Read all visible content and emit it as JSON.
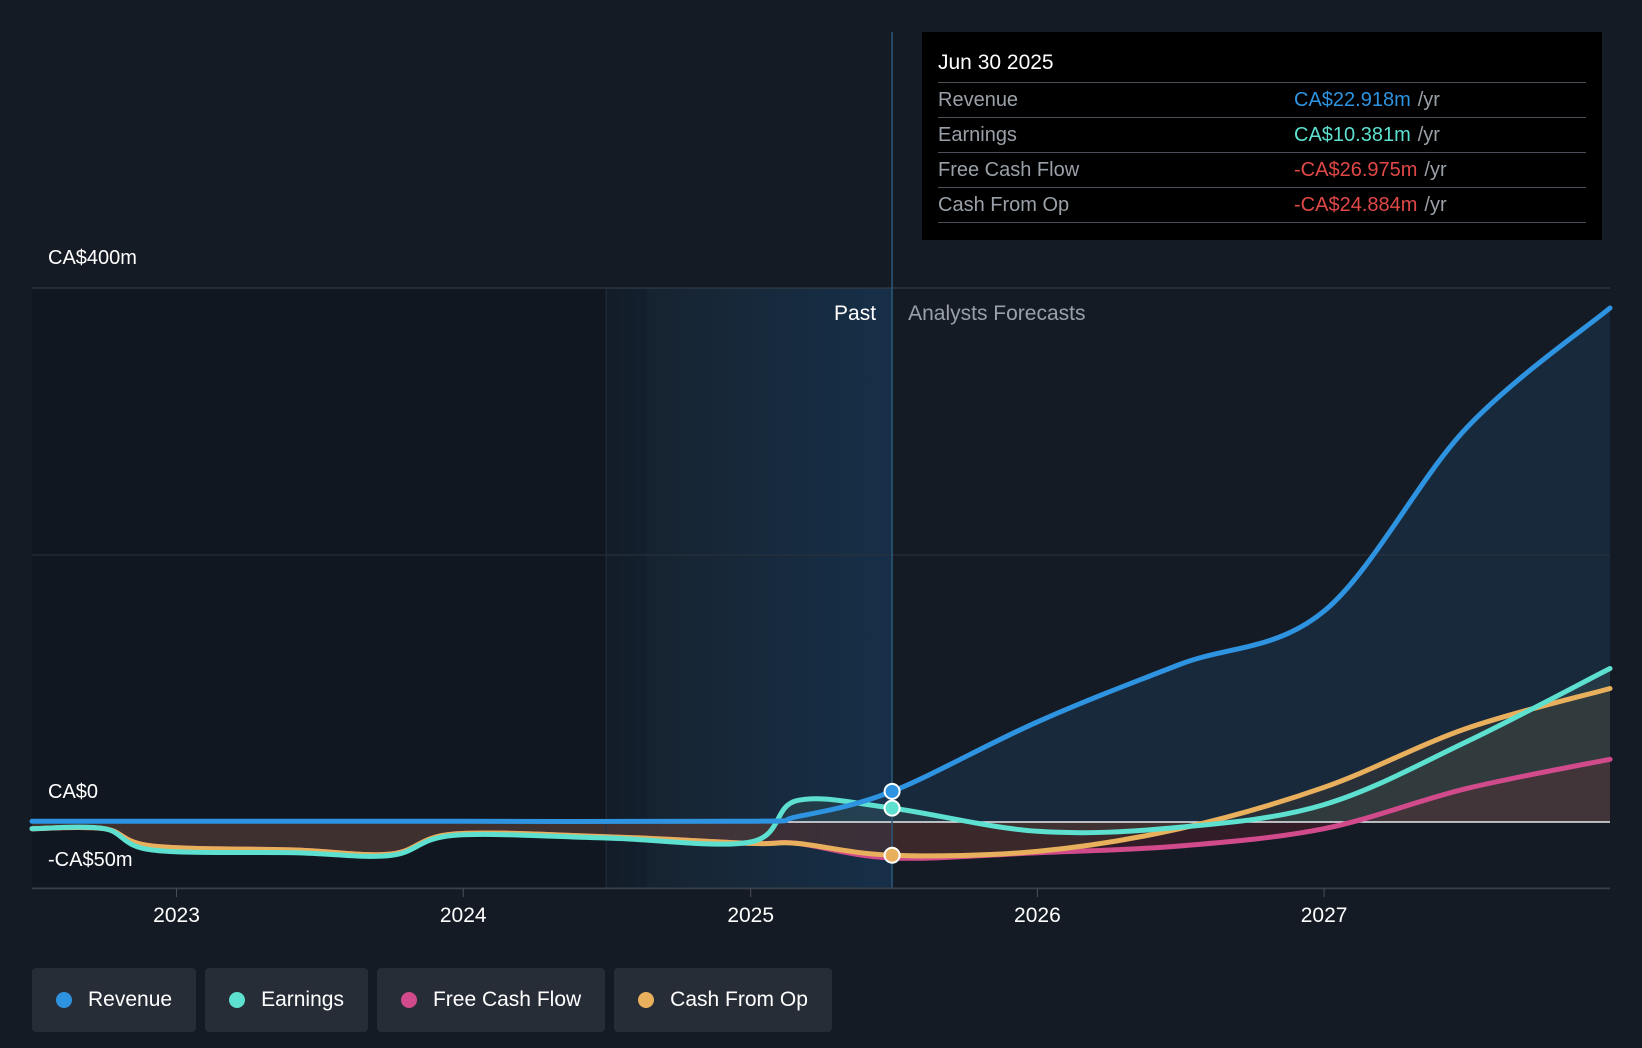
{
  "tooltip": {
    "date": "Jun 30 2025",
    "rows": [
      {
        "label": "Revenue",
        "value": "CA$22.918m",
        "unit": "/yr",
        "color": "#2e93e0"
      },
      {
        "label": "Earnings",
        "value": "CA$10.381m",
        "unit": "/yr",
        "color": "#5de0cf"
      },
      {
        "label": "Free Cash Flow",
        "value": "-CA$26.975m",
        "unit": "/yr",
        "color": "#e04848"
      },
      {
        "label": "Cash From Op",
        "value": "-CA$24.884m",
        "unit": "/yr",
        "color": "#e04848"
      }
    ]
  },
  "legend": [
    {
      "label": "Revenue",
      "color": "#2e93e0"
    },
    {
      "label": "Earnings",
      "color": "#5de0cf"
    },
    {
      "label": "Free Cash Flow",
      "color": "#d14b8c"
    },
    {
      "label": "Cash From Op",
      "color": "#e8b05c"
    }
  ],
  "chart_data": {
    "type": "line",
    "y_tick_labels": [
      "CA$400m",
      "CA$0",
      "-CA$50m"
    ],
    "y_ticks": [
      400,
      0,
      -50
    ],
    "ylim": [
      -50,
      400
    ],
    "xlim": [
      "2022-07-01",
      "2027-12-31"
    ],
    "x_ticks": [
      {
        "label": "2023",
        "date": "2023-01-01"
      },
      {
        "label": "2024",
        "date": "2024-01-01"
      },
      {
        "label": "2025",
        "date": "2025-01-01"
      },
      {
        "label": "2026",
        "date": "2026-01-01"
      },
      {
        "label": "2027",
        "date": "2027-01-01"
      }
    ],
    "past_label": "Past",
    "forecast_label": "Analysts Forecasts",
    "past_start": "2024-07-01",
    "divider_date": "2025-06-30",
    "grid": true,
    "series": [
      {
        "name": "Revenue",
        "color": "#2e93e0",
        "points": [
          [
            "2022-07-01",
            0.5
          ],
          [
            "2023-01-01",
            0.5
          ],
          [
            "2024-01-01",
            0.5
          ],
          [
            "2025-01-01",
            0.5
          ],
          [
            "2025-03-01",
            4
          ],
          [
            "2025-06-30",
            22.918
          ],
          [
            "2026-01-01",
            75
          ],
          [
            "2026-07-01",
            118
          ],
          [
            "2027-01-01",
            158
          ],
          [
            "2027-07-01",
            295
          ],
          [
            "2027-12-31",
            385
          ]
        ]
      },
      {
        "name": "Earnings",
        "color": "#5de0cf",
        "points": [
          [
            "2022-07-01",
            -5
          ],
          [
            "2022-10-01",
            -5
          ],
          [
            "2022-12-01",
            -21
          ],
          [
            "2023-06-01",
            -23
          ],
          [
            "2023-10-01",
            -25
          ],
          [
            "2023-12-20",
            -10
          ],
          [
            "2024-07-01",
            -12
          ],
          [
            "2025-01-01",
            -15
          ],
          [
            "2025-03-01",
            16
          ],
          [
            "2025-06-30",
            10.381
          ],
          [
            "2026-01-01",
            -7
          ],
          [
            "2026-07-01",
            -4
          ],
          [
            "2027-01-01",
            13
          ],
          [
            "2027-07-01",
            60
          ],
          [
            "2027-12-31",
            115
          ]
        ]
      },
      {
        "name": "Free Cash Flow",
        "color": "#d14b8c",
        "points": [
          [
            "2022-07-01",
            -5
          ],
          [
            "2022-10-01",
            -5
          ],
          [
            "2022-12-01",
            -18
          ],
          [
            "2023-06-01",
            -21
          ],
          [
            "2023-10-01",
            -24
          ],
          [
            "2023-12-20",
            -9
          ],
          [
            "2024-07-01",
            -11
          ],
          [
            "2025-01-01",
            -16
          ],
          [
            "2025-03-01",
            -16
          ],
          [
            "2025-06-30",
            -26.975
          ],
          [
            "2026-01-01",
            -23
          ],
          [
            "2026-07-01",
            -18
          ],
          [
            "2027-01-01",
            -5
          ],
          [
            "2027-07-01",
            25
          ],
          [
            "2027-12-31",
            47
          ]
        ]
      },
      {
        "name": "Cash From Op",
        "color": "#e8b05c",
        "points": [
          [
            "2022-07-01",
            -5
          ],
          [
            "2022-10-01",
            -5
          ],
          [
            "2022-12-01",
            -18
          ],
          [
            "2023-06-01",
            -21
          ],
          [
            "2023-10-01",
            -24
          ],
          [
            "2023-12-20",
            -9
          ],
          [
            "2024-07-01",
            -11
          ],
          [
            "2025-01-01",
            -16
          ],
          [
            "2025-03-01",
            -16
          ],
          [
            "2025-06-30",
            -24.884
          ],
          [
            "2026-01-01",
            -22
          ],
          [
            "2026-07-01",
            -5
          ],
          [
            "2027-01-01",
            26
          ],
          [
            "2027-07-01",
            70
          ],
          [
            "2027-12-31",
            100
          ]
        ]
      }
    ],
    "highlight_date": "2025-06-30",
    "highlight_values": [
      22.918,
      10.381,
      -26.975,
      -24.884
    ]
  }
}
